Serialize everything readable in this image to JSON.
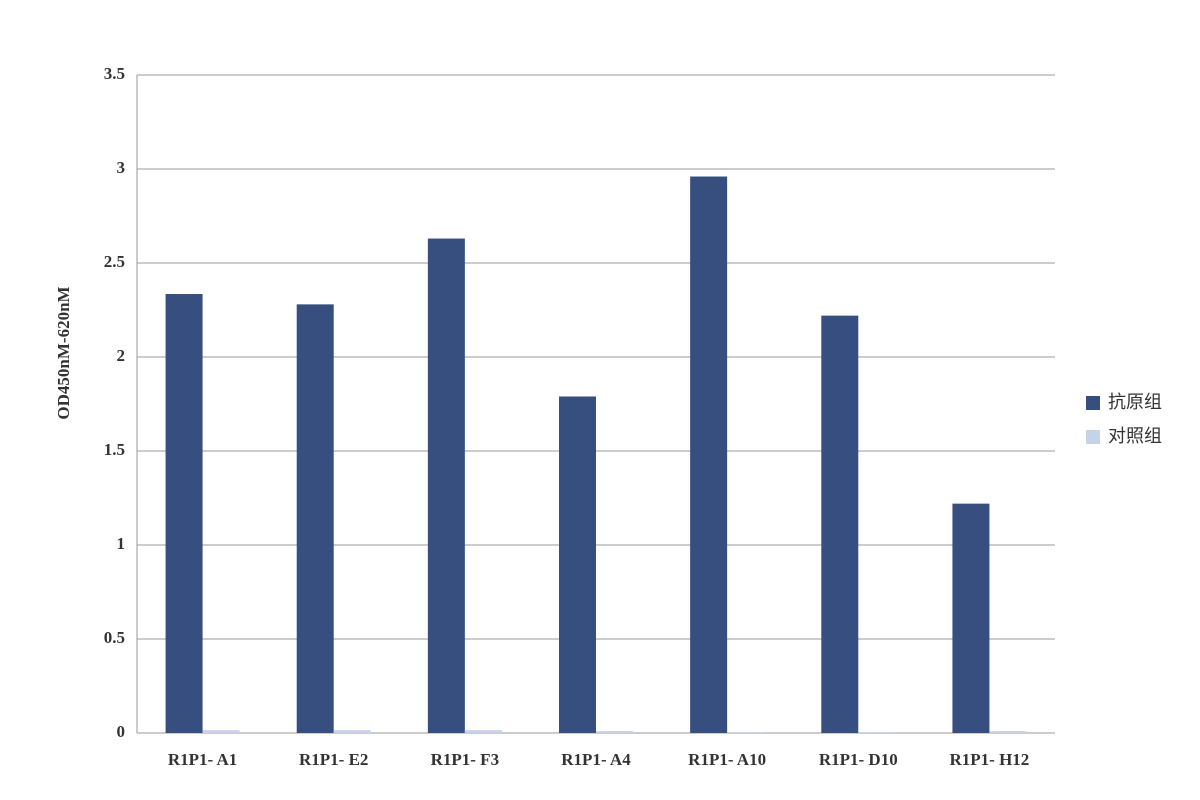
{
  "chart_data": {
    "type": "bar",
    "y_label": "OD450nM-620nM",
    "categories": [
      "R1P1- A1",
      "R1P1- E2",
      "R1P1- F3",
      "R1P1- A4",
      "R1P1- A10",
      "R1P1- D10",
      "R1P1- H12"
    ],
    "series": [
      {
        "name": "抗原组",
        "color": "#374f7f",
        "values": [
          2.335,
          2.28,
          2.63,
          1.79,
          2.96,
          2.22,
          1.22
        ]
      },
      {
        "name": "对照组",
        "color": "#c5d3e8",
        "values": [
          0.015,
          0.015,
          0.015,
          0.01,
          0.005,
          0.005,
          0.01
        ]
      }
    ],
    "ylim": [
      0,
      3.5
    ],
    "yticks": [
      0,
      0.5,
      1,
      1.5,
      2,
      2.5,
      3,
      3.5
    ],
    "grid": true,
    "legend": "right"
  }
}
